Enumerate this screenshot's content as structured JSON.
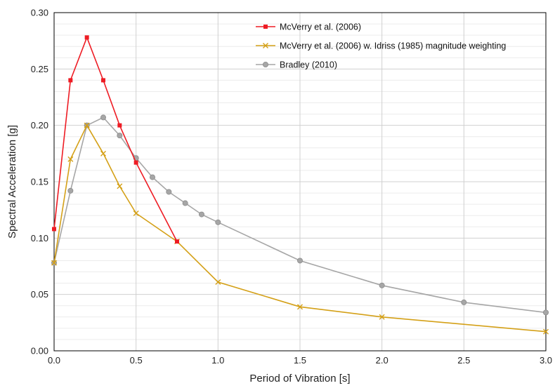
{
  "chart_data": {
    "type": "line",
    "xlabel": "Period of Vibration [s]",
    "ylabel": "Spectral Acceleration [g]",
    "xlim": [
      0,
      3.0
    ],
    "ylim": [
      0,
      0.3
    ],
    "x_ticks": [
      0.0,
      0.5,
      1.0,
      1.5,
      2.0,
      2.5,
      3.0
    ],
    "x_tick_labels": [
      "0.0",
      "0.5",
      "1.0",
      "1.5",
      "2.0",
      "2.5",
      "3.0"
    ],
    "y_ticks": [
      0.0,
      0.05,
      0.1,
      0.15,
      0.2,
      0.25,
      0.3
    ],
    "y_tick_labels": [
      "0.00",
      "0.05",
      "0.10",
      "0.15",
      "0.20",
      "0.25",
      "0.30"
    ],
    "grid": "on",
    "legend_position": "top-right",
    "series": [
      {
        "name": "McVerry et al. (2006)",
        "color": "#ee1c24",
        "marker": "square",
        "x": [
          0.0,
          0.1,
          0.2,
          0.3,
          0.4,
          0.5,
          0.75
        ],
        "y": [
          0.108,
          0.24,
          0.278,
          0.24,
          0.2,
          0.167,
          0.097
        ]
      },
      {
        "name": "McVerry et al. (2006) w. Idriss (1985) magnitude weighting",
        "color": "#d4a017",
        "marker": "x",
        "x": [
          0.0,
          0.1,
          0.2,
          0.3,
          0.4,
          0.5,
          0.75,
          1.0,
          1.5,
          2.0,
          3.0
        ],
        "y": [
          0.078,
          0.17,
          0.2,
          0.175,
          0.146,
          0.122,
          0.097,
          0.061,
          0.039,
          0.03,
          0.017
        ]
      },
      {
        "name": "Bradley (2010)",
        "color": "#a6a6a6",
        "marker": "circle",
        "x": [
          0.0,
          0.1,
          0.2,
          0.3,
          0.4,
          0.5,
          0.6,
          0.7,
          0.8,
          0.9,
          1.0,
          1.5,
          2.0,
          2.5,
          3.0
        ],
        "y": [
          0.078,
          0.142,
          0.2,
          0.207,
          0.191,
          0.171,
          0.154,
          0.141,
          0.131,
          0.121,
          0.114,
          0.08,
          0.058,
          0.043,
          0.034
        ]
      }
    ]
  }
}
